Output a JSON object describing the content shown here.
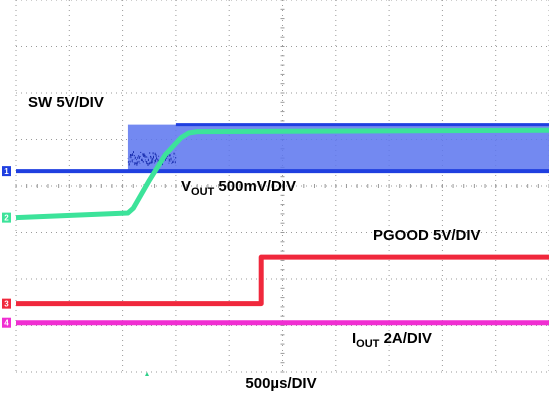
{
  "chart_data": {
    "type": "line",
    "title": "",
    "xlabel": "500µs/DIV",
    "x_unit": "ms",
    "xlim": [
      0,
      5
    ],
    "divisions": {
      "x": 10,
      "y": 8
    },
    "grid": true,
    "series": [
      {
        "name": "SW 5V/DIV",
        "label_main": "SW 5V/DIV",
        "color": "#1f3fe0",
        "fill_color": "#5b74ee",
        "channel_marker": "1",
        "ground_div": 4.32,
        "x": [
          0,
          1.05,
          1.05,
          1.5,
          1.5,
          5
        ],
        "low_div": [
          0,
          0,
          0,
          0,
          0,
          0
        ],
        "high_div": [
          0,
          0,
          1.0,
          1.0,
          1.0,
          1.0
        ],
        "note": "switching band between 1.05 ms and 5 ms"
      },
      {
        "name": "VOUT 500mV/DIV",
        "label_main": "V",
        "label_sub": "OUT",
        "label_tail": " 500mV/DIV",
        "color": "#3ce39a",
        "channel_marker": "2",
        "ground_div": 3.32,
        "x": [
          0,
          1.05,
          1.1,
          1.25,
          1.4,
          1.55,
          1.62,
          1.7,
          5
        ],
        "y_div": [
          0,
          0.1,
          0.2,
          0.8,
          1.35,
          1.72,
          1.82,
          1.85,
          1.88
        ]
      },
      {
        "name": "PGOOD 5V/DIV",
        "label_main": "PGOOD 5V/DIV",
        "color": "#f0283c",
        "channel_marker": "3",
        "ground_div": 1.47,
        "x": [
          0,
          2.3,
          2.3,
          5
        ],
        "y_div": [
          0,
          0,
          1.0,
          1.0
        ]
      },
      {
        "name": "IOUT 2A/DIV",
        "label_main": "I",
        "label_sub": "OUT",
        "label_tail": " 2A/DIV",
        "color": "#f02ed2",
        "channel_marker": "4",
        "ground_div": 1.06,
        "x": [
          0,
          5
        ],
        "y_div": [
          0,
          0
        ]
      }
    ]
  }
}
